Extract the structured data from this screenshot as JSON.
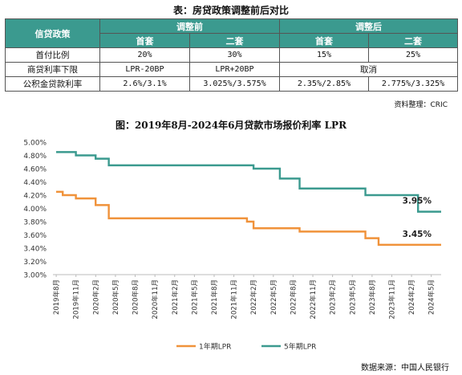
{
  "table": {
    "title": "表：房贷政策调整前后对比",
    "header": {
      "col0": "信贷政策",
      "before": "调整前",
      "after": "调整后",
      "sub": [
        "首套",
        "二套",
        "首套",
        "二套"
      ]
    },
    "rows": [
      {
        "label": "首付比例",
        "cells": [
          "20%",
          "30%",
          "15%",
          "25%"
        ]
      },
      {
        "label": "商贷利率下限",
        "cells": [
          "LPR-20BP",
          "LPR+20BP",
          "取消"
        ]
      },
      {
        "label": "公积金贷款利率",
        "cells": [
          "2.6%/3.1%",
          "3.025%/3.575%",
          "2.35%/2.85%",
          "2.775%/3.325%"
        ]
      }
    ],
    "source": "资料整理：CRIC"
  },
  "chart": {
    "title": "图：2019年8月-2024年6月贷款市场报价利率 LPR",
    "source": "数据来源：中国人民银行"
  },
  "chart_data": {
    "type": "line",
    "ylim": [
      3.0,
      5.0
    ],
    "yticks": [
      "3.00%",
      "3.20%",
      "3.40%",
      "3.60%",
      "3.80%",
      "4.00%",
      "4.20%",
      "4.40%",
      "4.60%",
      "4.80%",
      "5.00%"
    ],
    "x_ticklabels": [
      "2019年8月",
      "2019年11月",
      "2020年2月",
      "2020年5月",
      "2020年8月",
      "2020年11月",
      "2021年2月",
      "2021年5月",
      "2021年8月",
      "2021年11月",
      "2022年2月",
      "2022年5月",
      "2022年8月",
      "2022年11月",
      "2023年2月",
      "2023年5月",
      "2023年8月",
      "2023年11月",
      "2024年2月",
      "2024年5月"
    ],
    "series": [
      {
        "name": "1年期LPR",
        "color": "#f0923a",
        "values": [
          4.25,
          4.2,
          4.2,
          4.15,
          4.15,
          4.15,
          4.05,
          4.05,
          3.85,
          3.85,
          3.85,
          3.85,
          3.85,
          3.85,
          3.85,
          3.85,
          3.85,
          3.85,
          3.85,
          3.85,
          3.85,
          3.85,
          3.85,
          3.85,
          3.85,
          3.85,
          3.85,
          3.85,
          3.85,
          3.8,
          3.7,
          3.7,
          3.7,
          3.7,
          3.7,
          3.7,
          3.7,
          3.65,
          3.65,
          3.65,
          3.65,
          3.65,
          3.65,
          3.65,
          3.65,
          3.65,
          3.65,
          3.55,
          3.55,
          3.45,
          3.45,
          3.45,
          3.45,
          3.45,
          3.45,
          3.45,
          3.45,
          3.45,
          3.45
        ],
        "end_label": "3.45%"
      },
      {
        "name": "5年期LPR",
        "color": "#3b9a8f",
        "values": [
          4.85,
          4.85,
          4.85,
          4.8,
          4.8,
          4.8,
          4.75,
          4.75,
          4.65,
          4.65,
          4.65,
          4.65,
          4.65,
          4.65,
          4.65,
          4.65,
          4.65,
          4.65,
          4.65,
          4.65,
          4.65,
          4.65,
          4.65,
          4.65,
          4.65,
          4.65,
          4.65,
          4.65,
          4.65,
          4.65,
          4.6,
          4.6,
          4.6,
          4.6,
          4.45,
          4.45,
          4.45,
          4.3,
          4.3,
          4.3,
          4.3,
          4.3,
          4.3,
          4.3,
          4.3,
          4.3,
          4.3,
          4.2,
          4.2,
          4.2,
          4.2,
          4.2,
          4.2,
          4.2,
          4.2,
          3.95,
          3.95,
          3.95,
          3.95
        ],
        "end_label": "3.95%"
      }
    ],
    "legend_position": "bottom-center",
    "grid": false
  }
}
